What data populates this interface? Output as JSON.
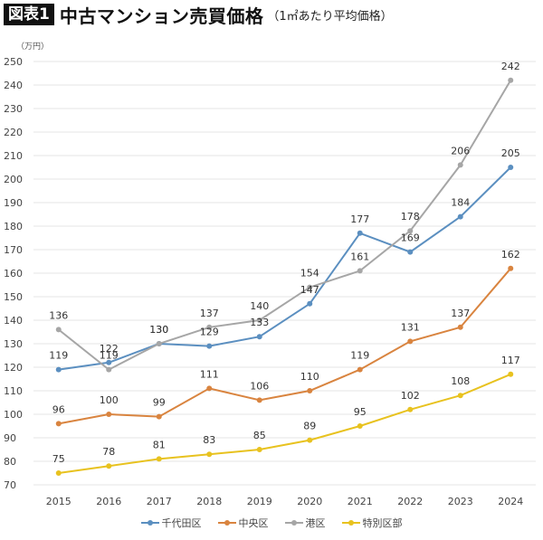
{
  "header": {
    "badge": "図表1",
    "title": "中古マンション売買価格",
    "subtitle": "（1㎡あたり平均価格）"
  },
  "chart_data": {
    "type": "line",
    "title": "中古マンション売買価格（1㎡あたり平均価格）",
    "unit_label": "（万円）",
    "xlabel": "",
    "ylabel": "万円",
    "ylim": [
      70,
      250
    ],
    "yticks": [
      70,
      80,
      90,
      100,
      110,
      120,
      130,
      140,
      150,
      160,
      170,
      180,
      190,
      200,
      210,
      220,
      230,
      240,
      250
    ],
    "grid": true,
    "legend_position": "bottom",
    "categories": [
      "2015",
      "2016",
      "2017",
      "2018",
      "2019",
      "2020",
      "2021",
      "2022",
      "2023",
      "2024"
    ],
    "series": [
      {
        "name": "千代田区",
        "color": "#5b8fc0",
        "values": [
          119,
          122,
          130,
          129,
          133,
          147,
          177,
          169,
          184,
          205
        ]
      },
      {
        "name": "中央区",
        "color": "#d9843f",
        "values": [
          96,
          100,
          99,
          111,
          106,
          110,
          119,
          131,
          137,
          162
        ]
      },
      {
        "name": "港区",
        "color": "#a6a6a6",
        "values": [
          136,
          119,
          130,
          137,
          140,
          154,
          161,
          178,
          206,
          242
        ]
      },
      {
        "name": "特別区部",
        "color": "#e8c21f",
        "values": [
          75,
          78,
          81,
          83,
          85,
          89,
          95,
          102,
          108,
          117
        ]
      }
    ]
  }
}
